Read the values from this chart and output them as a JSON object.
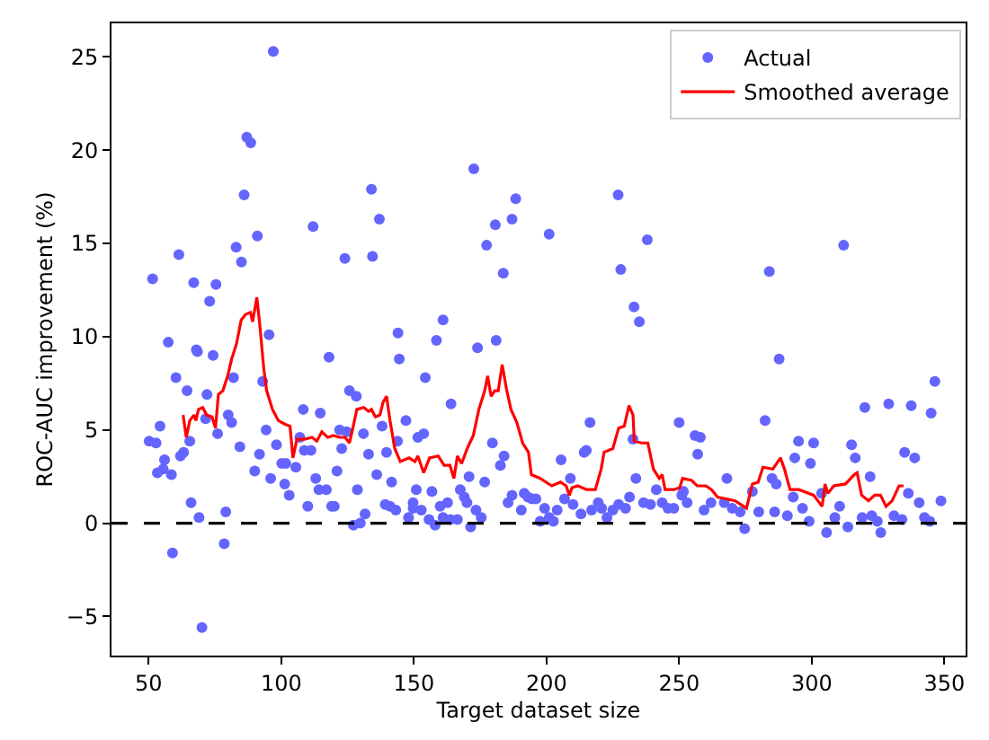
{
  "chart_data": {
    "type": "scatter",
    "xlabel": "Target dataset size",
    "ylabel": "ROC-AUC improvement (%)",
    "xlim": [
      36,
      358
    ],
    "ylim": [
      -7.1,
      26.8
    ],
    "xticks": [
      50,
      100,
      150,
      200,
      250,
      300,
      350
    ],
    "yticks": [
      -5,
      0,
      5,
      10,
      15,
      20,
      25
    ],
    "legend": "top right",
    "ref_lines": [
      {
        "axis": "y",
        "value": 0,
        "label": null,
        "color": "#000000",
        "line_style": "dashed"
      }
    ],
    "series": [
      {
        "name": "Actual",
        "marker": "circle",
        "color": "#6464ff",
        "x": [
          97,
          87,
          88.5,
          86,
          134,
          137,
          112,
          61.4,
          91,
          83,
          85,
          124,
          134.4,
          51.5,
          67,
          75.4,
          73,
          95.4,
          57.4,
          68,
          144,
          172.6,
          188.4,
          227,
          180.7,
          187,
          201,
          177.4,
          238,
          183.7,
          228,
          233,
          235,
          161,
          158.5,
          181,
          174,
          312,
          284,
          287.7,
          346.4,
          250,
          320,
          329,
          337.5,
          345,
          282.4,
          256,
          258,
          257,
          295,
          300.7,
          315,
          293.6,
          299.5,
          316.4,
          335,
          338.8,
          322,
          268,
          285,
          286.6,
          293,
          303.7,
          336.4,
          340.5,
          348.7,
          277.6,
          274.7,
          305.6,
          326,
          313.6,
          253,
          259.4,
          262,
          267,
          270,
          273,
          280,
          286,
          290.8,
          296.5,
          299,
          308.7,
          310.5,
          319,
          322.6,
          324.7,
          331,
          334,
          342.5,
          344.5,
          248,
          251,
          251.6,
          144.5,
          154.3,
          164,
          147,
          143.8,
          151.5,
          153.7,
          139.7,
          179.6,
          184,
          182.6,
          170.8,
          176.7,
          141.6,
          150.9,
          156.8,
          167.5,
          169,
          170,
          162.7,
          159.9,
          139.2,
          141,
          143.2,
          149.7,
          149.7,
          152.8,
          148,
          155.7,
          158,
          161,
          163.8,
          166.4,
          171.4,
          173.4,
          175.4,
          185.5,
          187,
          190.5,
          191.6,
          193,
          194.5,
          196,
          197.6,
          199.3,
          201,
          202.6,
          204,
          205.5,
          206.8,
          209,
          210,
          213,
          214.2,
          215,
          216.4,
          217,
          219.5,
          220.8,
          222.8,
          225,
          227.2,
          229.8,
          231.3,
          233.7,
          236.6,
          239.2,
          241.4,
          243.6,
          245.8,
          232.6,
          68.4,
          74.3,
          60.3,
          64.5,
          72,
          82,
          93,
          118,
          125.7,
          128.3,
          108.3,
          114.7,
          80,
          81.3,
          71.5,
          54.3,
          94.3,
          50.2,
          52.8,
          65.5,
          76,
          84.4,
          98.2,
          63.2,
          62,
          56,
          55.5,
          53.3,
          58.6,
          91.8,
          90,
          96,
          100.2,
          101.7,
          105.5,
          101.3,
          103,
          107,
          108.7,
          111.2,
          113,
          114.2,
          117,
          110,
          119,
          120,
          121,
          122.8,
          122,
          124.7,
          131,
          132.9,
          136,
          138,
          128.7,
          131.6,
          129.8,
          127.2,
          66,
          69,
          79.1,
          59,
          78.5,
          70.1
        ],
        "values": [
          25.3,
          20.7,
          20.4,
          17.6,
          17.9,
          16.3,
          15.9,
          14.4,
          15.4,
          14.8,
          14.0,
          14.2,
          14.3,
          13.1,
          12.9,
          12.8,
          11.9,
          10.1,
          9.7,
          9.3,
          10.2,
          19.0,
          17.4,
          17.6,
          16.0,
          16.3,
          15.5,
          14.9,
          15.2,
          13.4,
          13.6,
          11.6,
          10.8,
          10.9,
          9.8,
          9.8,
          9.4,
          14.9,
          13.5,
          8.8,
          7.6,
          5.4,
          6.2,
          6.4,
          6.3,
          5.9,
          5.5,
          4.7,
          4.6,
          3.7,
          4.4,
          4.3,
          4.2,
          3.5,
          3.2,
          3.5,
          3.8,
          3.5,
          2.5,
          2.4,
          2.4,
          2.1,
          1.4,
          1.6,
          1.6,
          1.1,
          1.2,
          1.7,
          -0.3,
          -0.5,
          -0.5,
          -0.2,
          1.1,
          0.7,
          1.1,
          1.1,
          0.8,
          0.6,
          0.6,
          0.6,
          0.4,
          0.8,
          0.1,
          0.3,
          0.9,
          0.3,
          0.4,
          0.1,
          0.4,
          0.2,
          0.3,
          0.1,
          0.8,
          1.5,
          1.7,
          8.8,
          7.8,
          6.4,
          5.5,
          4.4,
          4.6,
          4.8,
          3.8,
          4.3,
          3.6,
          3.1,
          2.5,
          2.2,
          2.2,
          1.8,
          1.7,
          1.8,
          1.4,
          1.1,
          1.1,
          0.9,
          1.0,
          0.9,
          0.7,
          1.1,
          0.8,
          0.7,
          0.3,
          0.2,
          -0.1,
          0.3,
          0.2,
          0.2,
          -0.2,
          0.7,
          0.3,
          1.1,
          1.5,
          0.7,
          1.6,
          1.4,
          1.3,
          1.3,
          0.1,
          0.8,
          0.3,
          0.1,
          0.7,
          3.4,
          1.3,
          2.4,
          1.0,
          0.5,
          3.8,
          3.9,
          5.4,
          0.7,
          1.1,
          0.8,
          0.3,
          0.7,
          1.0,
          0.8,
          1.4,
          2.4,
          1.1,
          1.0,
          1.8,
          1.1,
          0.8,
          4.5,
          9.2,
          9.0,
          7.8,
          7.1,
          6.9,
          7.8,
          7.6,
          8.9,
          7.1,
          6.8,
          6.1,
          5.9,
          5.8,
          5.4,
          5.6,
          5.2,
          5.0,
          4.4,
          4.3,
          4.4,
          4.8,
          4.1,
          4.2,
          3.8,
          3.6,
          3.4,
          2.9,
          2.7,
          2.6,
          3.7,
          2.8,
          2.4,
          3.2,
          3.2,
          3.0,
          2.1,
          1.5,
          4.6,
          3.9,
          3.9,
          2.4,
          1.8,
          1.8,
          0.9,
          0.9,
          0.9,
          2.8,
          4.0,
          5.0,
          4.9,
          4.8,
          3.7,
          2.6,
          5.2,
          1.8,
          0.5,
          0.0,
          -0.1,
          1.1,
          0.3,
          0.6,
          -1.6,
          -1.1,
          -5.6
        ]
      },
      {
        "name": "Smoothed average",
        "type": "line",
        "marker": "none",
        "line_style": "solid",
        "color": "#ff0000",
        "x": [
          63.0,
          64.2,
          65.5,
          67.1,
          67.8,
          68.8,
          70.4,
          71.9,
          73.9,
          75.2,
          76.3,
          78.0,
          79.8,
          81.3,
          83.1,
          84.9,
          86.6,
          88.4,
          89.2,
          90.8,
          91.8,
          93.4,
          94.5,
          96.7,
          98.9,
          101.5,
          103.3,
          104.4,
          105.9,
          108.8,
          111.6,
          113.4,
          115.3,
          117.5,
          119.7,
          121.9,
          124.1,
          125.7,
          127.0,
          128.5,
          131.1,
          132.9,
          134.0,
          135.5,
          137.2,
          138.4,
          139.7,
          141.0,
          142.8,
          144.9,
          148.2,
          150.4,
          151.5,
          153.7,
          155.9,
          159.2,
          161.4,
          163.6,
          165.1,
          166.4,
          168.0,
          170.1,
          172.4,
          174.5,
          176.7,
          177.8,
          179.1,
          180.5,
          181.8,
          183.3,
          184.9,
          186.6,
          188.8,
          191.0,
          193.2,
          194.3,
          197.6,
          202.0,
          205.3,
          207.4,
          208.6,
          209.6,
          211.8,
          215.1,
          218.4,
          220.6,
          221.7,
          225.0,
          227.2,
          229.3,
          231.1,
          232.6,
          233.1,
          235.9,
          238.2,
          240.3,
          242.5,
          243.6,
          244.7,
          248.0,
          250.2,
          251.3,
          254.6,
          256.8,
          260.1,
          262.2,
          264.5,
          267.8,
          271.1,
          275.4,
          277.6,
          279.8,
          281.6,
          285.3,
          288.2,
          289.7,
          291.8,
          295.1,
          300.7,
          303.9,
          305.0,
          306.1,
          308.3,
          312.7,
          316.0,
          317.1,
          318.8,
          321.4,
          323.7,
          325.9,
          328.0,
          330.3,
          332.9,
          334.6
        ],
        "values": [
          5.8,
          4.6,
          5.5,
          5.8,
          5.5,
          6.1,
          6.2,
          5.8,
          5.7,
          5.1,
          6.9,
          7.1,
          7.9,
          8.8,
          9.6,
          10.9,
          11.2,
          11.3,
          10.8,
          12.1,
          10.8,
          8.3,
          7.1,
          6.1,
          5.5,
          5.3,
          5.2,
          3.5,
          4.5,
          4.5,
          4.6,
          4.4,
          4.9,
          4.6,
          4.7,
          4.6,
          4.6,
          4.3,
          5.1,
          6.1,
          6.2,
          6.0,
          6.1,
          5.7,
          5.8,
          6.5,
          6.8,
          5.5,
          4.0,
          3.3,
          3.5,
          3.3,
          3.6,
          2.7,
          3.5,
          3.6,
          3.1,
          3.1,
          2.4,
          3.6,
          3.2,
          4.0,
          4.7,
          6.1,
          7.1,
          7.9,
          6.8,
          7.1,
          7.1,
          8.5,
          7.2,
          6.1,
          5.4,
          4.3,
          3.8,
          2.6,
          2.4,
          2.0,
          2.2,
          2.0,
          1.5,
          1.9,
          2.0,
          1.8,
          1.8,
          2.9,
          3.8,
          4.0,
          5.1,
          5.2,
          6.3,
          5.8,
          4.4,
          4.3,
          4.3,
          2.9,
          2.4,
          2.6,
          1.8,
          1.8,
          1.9,
          2.4,
          2.3,
          2.0,
          2.0,
          1.8,
          1.4,
          1.3,
          1.2,
          0.8,
          2.1,
          2.2,
          3.0,
          2.9,
          3.5,
          2.9,
          1.8,
          1.8,
          1.5,
          0.9,
          2.1,
          1.6,
          2.0,
          2.1,
          2.6,
          2.7,
          1.5,
          1.2,
          1.5,
          1.5,
          0.9,
          1.2,
          2.0,
          2.0
        ]
      }
    ]
  }
}
